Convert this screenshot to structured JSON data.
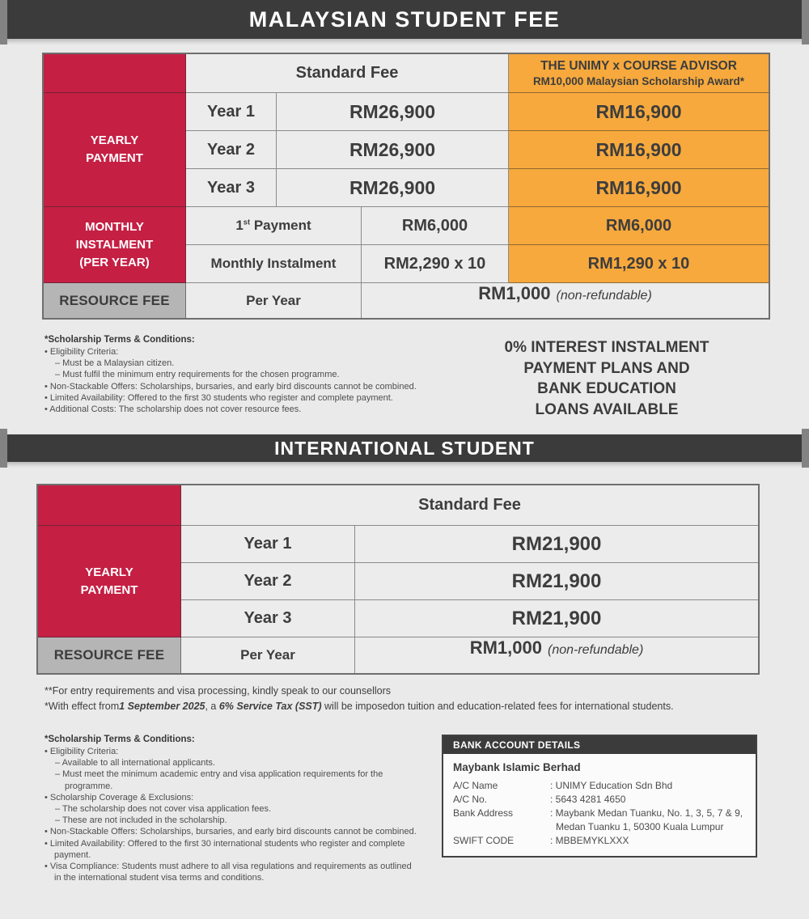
{
  "banner_my": {
    "title": "MALAYSIAN STUDENT FEE"
  },
  "table_my": {
    "standard_fee_header": "Standard Fee",
    "scholarship_header_line1": "THE UNIMY x COURSE ADVISOR",
    "scholarship_header_line2": "RM10,000 Malaysian Scholarship Award*",
    "yearly_label": "YEARLY\nPAYMENT",
    "rows_yearly": [
      {
        "label": "Year 1",
        "standard": "RM26,900",
        "scholarship": "RM16,900"
      },
      {
        "label": "Year 2",
        "standard": "RM26,900",
        "scholarship": "RM16,900"
      },
      {
        "label": "Year 3",
        "standard": "RM26,900",
        "scholarship": "RM16,900"
      }
    ],
    "monthly_label": "MONTHLY\nINSTALMENT\n(PER YEAR)",
    "first_payment": {
      "num": "1",
      "sup": "st",
      "rest": " Payment",
      "standard": "RM6,000",
      "scholarship": "RM6,000"
    },
    "monthly_instalment": {
      "label": "Monthly Instalment",
      "standard": "RM2,290 x 10",
      "scholarship": "RM1,290 x 10"
    },
    "resource": {
      "label": "RESOURCE FEE",
      "period": "Per Year",
      "value": "RM1,000",
      "note": "(non-refundable)"
    }
  },
  "terms_my": {
    "heading": "*Scholarship Terms & Conditions:",
    "items": [
      {
        "text": "• Eligibility Criteria:"
      },
      {
        "text": "– Must be a Malaysian citizen."
      },
      {
        "text": "– Must fulfil the minimum entry requirements for the chosen programme."
      },
      {
        "text": "• Non-Stackable Offers: Scholarships, bursaries, and early bird discounts cannot be combined."
      },
      {
        "text": "• Limited Availability: Offered to the first 30 students who register and complete payment."
      },
      {
        "text": "• Additional Costs: The scholarship does not cover resource fees."
      }
    ]
  },
  "promo": {
    "text": "0% INTEREST INSTALMENT\nPAYMENT PLANS AND\nBANK EDUCATION\nLOANS AVAILABLE"
  },
  "banner_int": {
    "title": "INTERNATIONAL STUDENT"
  },
  "table_int": {
    "standard_fee_header": "Standard Fee",
    "yearly_label": "YEARLY\nPAYMENT",
    "rows_yearly": [
      {
        "label": "Year 1",
        "standard": "RM21,900"
      },
      {
        "label": "Year 2",
        "standard": "RM21,900"
      },
      {
        "label": "Year 3",
        "standard": "RM21,900"
      }
    ],
    "resource": {
      "label": "RESOURCE FEE",
      "period": "Per Year",
      "value": "RM1,000",
      "note": "(non-refundable)"
    }
  },
  "notes_int": {
    "line1": "**For entry requirements and visa processing, kindly speak to our counsellors",
    "line2_prefix": "*With effect from",
    "line2_date": "1 September 2025",
    "line2_mid": ", a ",
    "line2_tax": "6% Service Tax (SST)",
    "line2_suffix": " will be imposedon tuition and education-related fees for international students."
  },
  "terms_int": {
    "heading": "*Scholarship Terms & Conditions:",
    "items": [
      {
        "text": "• Eligibility Criteria:"
      },
      {
        "text": "– Available to all international applicants."
      },
      {
        "text": "– Must meet the minimum academic entry and visa application requirements for the programme."
      },
      {
        "text": "• Scholarship Coverage & Exclusions:"
      },
      {
        "text": "– The scholarship does not cover visa application fees."
      },
      {
        "text": "– These are not included in the scholarship."
      },
      {
        "text": "• Non-Stackable Offers: Scholarships, bursaries, and early bird discounts cannot be combined."
      },
      {
        "text": "• Limited Availability: Offered to the first 30 international students who register and complete payment."
      },
      {
        "text": "• Visa Compliance: Students must adhere to all visa regulations and requirements as outlined in the international student visa terms and conditions."
      }
    ]
  },
  "bank": {
    "header": "BANK ACCOUNT DETAILS",
    "bank_name": "Maybank Islamic Berhad",
    "rows": [
      {
        "label": "A/C Name",
        "value": ": UNIMY Education Sdn Bhd"
      },
      {
        "label": "A/C No.",
        "value": ": 5643 4281 4650"
      },
      {
        "label": "Bank Address",
        "value": ": Maybank Medan Tuanku, No. 1, 3, 5, 7 & 9,"
      },
      {
        "label": "",
        "value": "Medan Tuanku 1, 50300 Kuala Lumpur"
      },
      {
        "label": "SWIFT CODE",
        "value": ": MBBEMYKLXXX"
      }
    ]
  }
}
